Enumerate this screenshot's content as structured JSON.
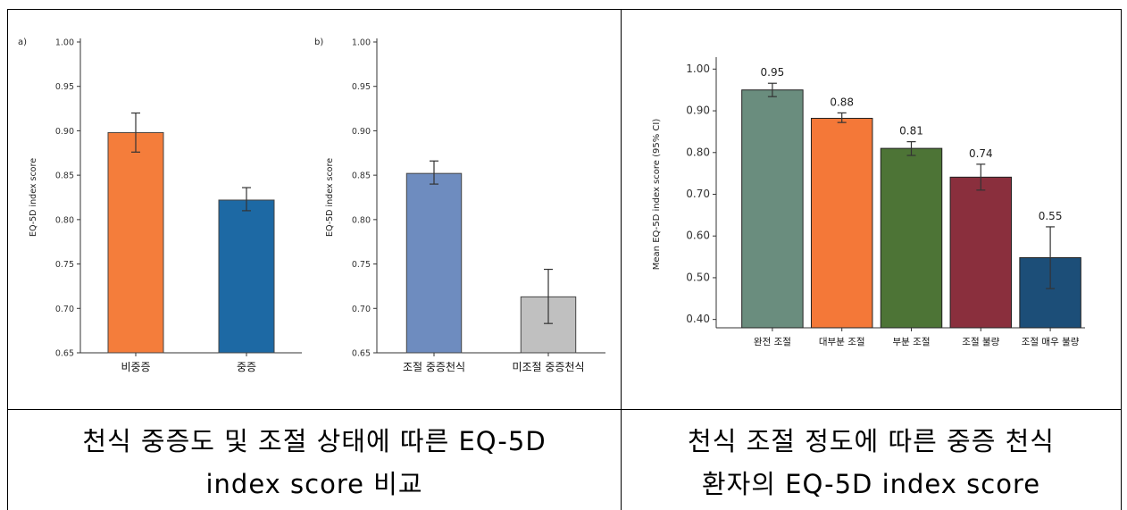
{
  "captions": {
    "left_line1": "천식 중증도 및 조절 상태에 따른 EQ-5D",
    "left_line2": "index score 비교",
    "right_line1": "천식 조절 정도에 따른 중증 천식",
    "right_line2": "환자의 EQ-5D index score"
  },
  "chart_data": [
    {
      "type": "bar",
      "panel_label": "a)",
      "ylabel": "EQ-5D index score",
      "ylim": [
        0.65,
        1.0
      ],
      "yticks": [
        "0.65",
        "0.70",
        "0.75",
        "0.80",
        "0.85",
        "0.90",
        "0.95",
        "1.00"
      ],
      "categories": [
        "비중증",
        "중증"
      ],
      "values": [
        0.898,
        0.822
      ],
      "err_low": [
        0.876,
        0.81
      ],
      "err_high": [
        0.92,
        0.836
      ],
      "colors": [
        "#f47d3b",
        "#1d69a4"
      ]
    },
    {
      "type": "bar",
      "panel_label": "b)",
      "ylabel": "EQ-5D index score",
      "ylim": [
        0.65,
        1.0
      ],
      "yticks": [
        "0.65",
        "0.70",
        "0.75",
        "0.80",
        "0.85",
        "0.90",
        "0.95",
        "1.00"
      ],
      "categories": [
        "조절 중증천식",
        "미조절 중증천식"
      ],
      "values": [
        0.852,
        0.713
      ],
      "err_low": [
        0.84,
        0.683
      ],
      "err_high": [
        0.866,
        0.744
      ],
      "colors": [
        "#6e8cbf",
        "#c0c0c0"
      ]
    },
    {
      "type": "bar",
      "ylabel": "Mean EQ-5D index score (95% CI)",
      "ylim": [
        0.38,
        1.02
      ],
      "yticks": [
        "0.40",
        "0.50",
        "0.60",
        "0.70",
        "0.80",
        "0.90",
        "1.00"
      ],
      "categories": [
        "완전 조절",
        "대부분 조절",
        "부분 조절",
        "조절 불량",
        "조절 매우 불량"
      ],
      "values": [
        0.95,
        0.882,
        0.81,
        0.741,
        0.548
      ],
      "err_low": [
        0.934,
        0.872,
        0.793,
        0.71,
        0.474
      ],
      "err_high": [
        0.966,
        0.895,
        0.826,
        0.772,
        0.622
      ],
      "data_labels": [
        "0.95",
        "0.88",
        "0.81",
        "0.74",
        "0.55"
      ],
      "colors": [
        "#6a8d7e",
        "#f47838",
        "#4d7436",
        "#8a2f3d",
        "#1c4e78"
      ]
    }
  ]
}
